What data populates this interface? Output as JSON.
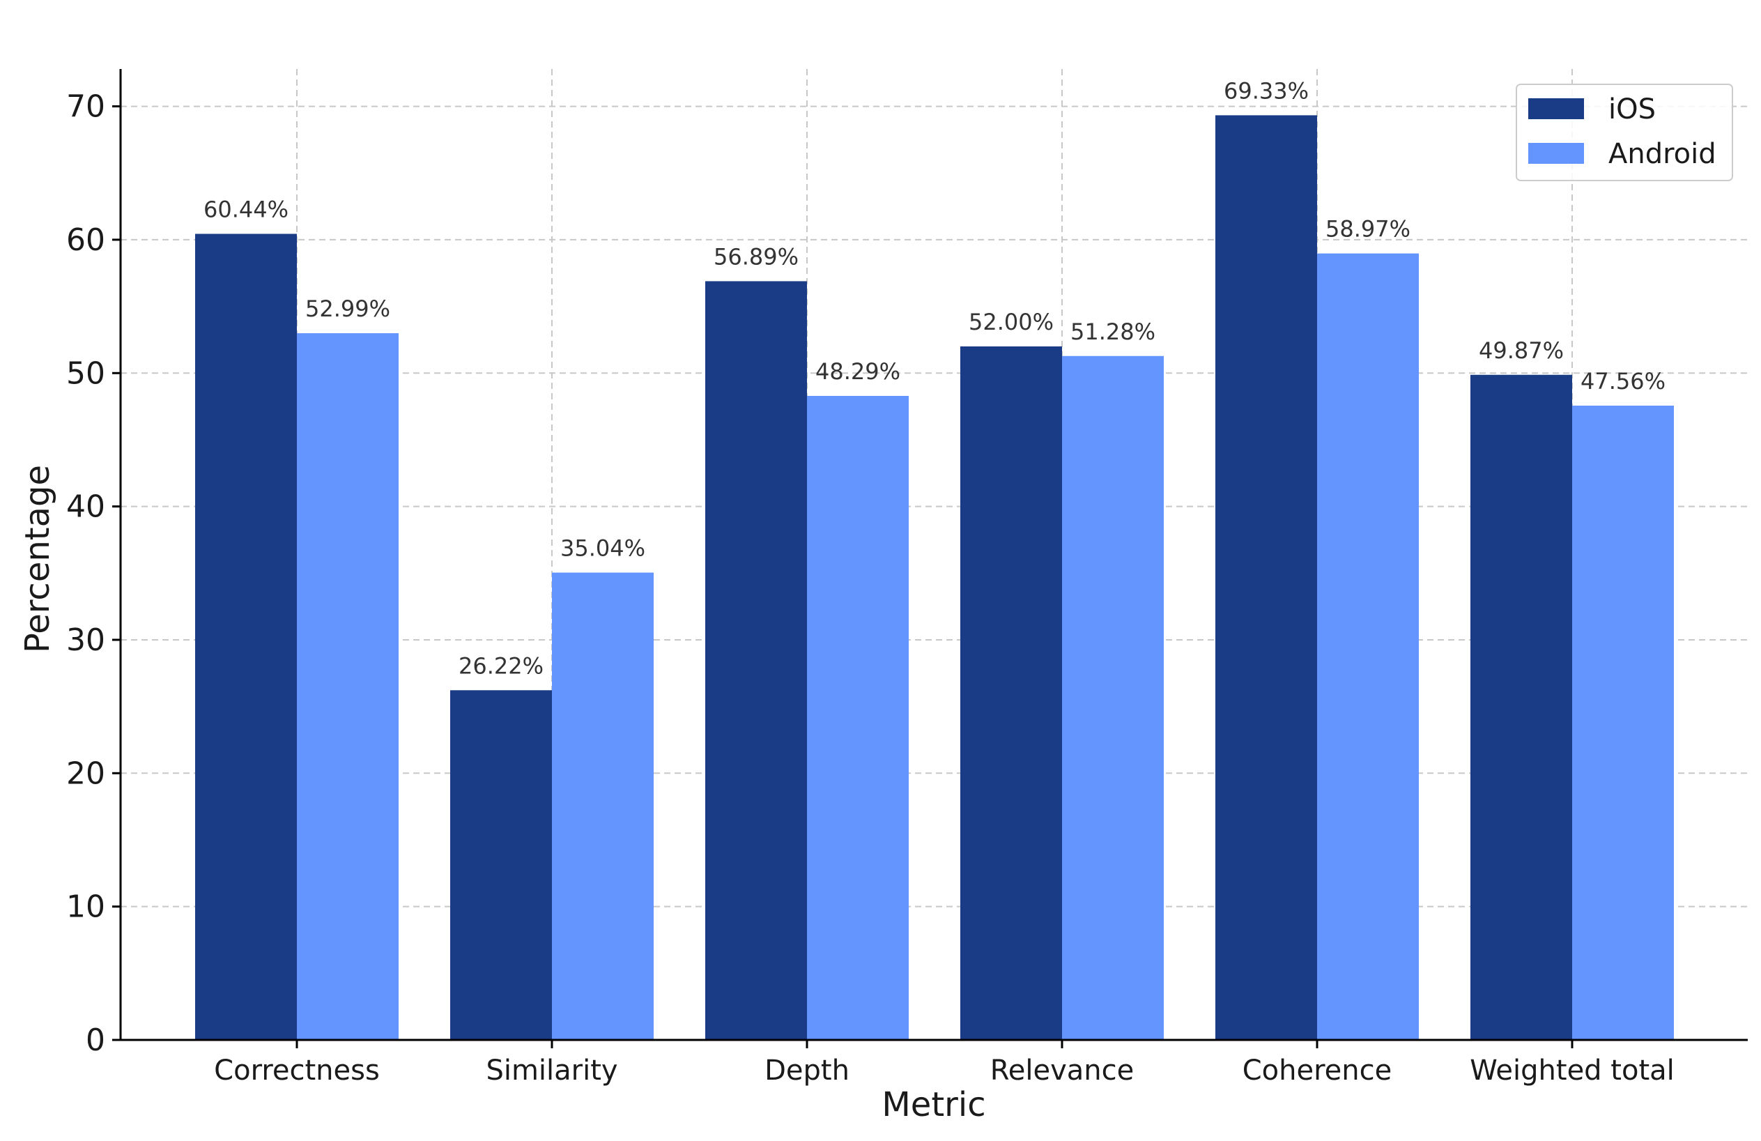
{
  "chart_data": {
    "type": "bar",
    "categories": [
      "Correctness",
      "Similarity",
      "Depth",
      "Relevance",
      "Coherence",
      "Weighted total"
    ],
    "series": [
      {
        "name": "iOS",
        "color": "#1a3c87",
        "values": [
          60.44,
          26.22,
          56.89,
          52.0,
          69.33,
          49.87
        ],
        "labels": [
          "60.44%",
          "26.22%",
          "56.89%",
          "52.00%",
          "69.33%",
          "49.87%"
        ]
      },
      {
        "name": "Android",
        "color": "#6495ff",
        "values": [
          52.99,
          35.04,
          48.29,
          51.28,
          58.97,
          47.56
        ],
        "labels": [
          "52.99%",
          "35.04%",
          "48.29%",
          "51.28%",
          "58.97%",
          "47.56%"
        ]
      }
    ],
    "xlabel": "Metric",
    "ylabel": "Percentage",
    "ylim": [
      0,
      72.8
    ],
    "yticks": [
      0,
      10,
      20,
      30,
      40,
      50,
      60,
      70
    ],
    "grid": true,
    "legend_position": "top-right"
  }
}
